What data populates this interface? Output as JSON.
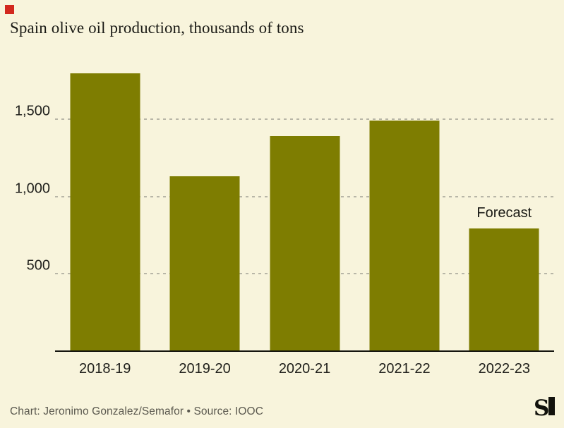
{
  "page": {
    "background_color": "#f8f4dc",
    "accent_square_color": "#d2281e"
  },
  "header": {
    "title": "Spain olive oil production, thousands of tons"
  },
  "chart_data": {
    "type": "bar",
    "title": "Spain olive oil production, thousands of tons",
    "categories": [
      "2018-19",
      "2019-20",
      "2020-21",
      "2021-22",
      "2022-23"
    ],
    "values": [
      1800,
      1130,
      1390,
      1490,
      790
    ],
    "xlabel": "",
    "ylabel": "",
    "ylim": [
      0,
      2000
    ],
    "yticks": [
      {
        "value": 500,
        "label": "500"
      },
      {
        "value": 1000,
        "label": "1,000"
      },
      {
        "value": 1500,
        "label": "1,500"
      }
    ],
    "grid": "horizontal dashed",
    "legend": "none",
    "bar_color": "#7e7d01",
    "annotation": {
      "text": "Forecast",
      "category": "2022-23"
    }
  },
  "footer": {
    "credit": "Chart: Jeronimo Gonzalez/Semafor • Source: IOOC",
    "logo": "semafor-logo"
  }
}
